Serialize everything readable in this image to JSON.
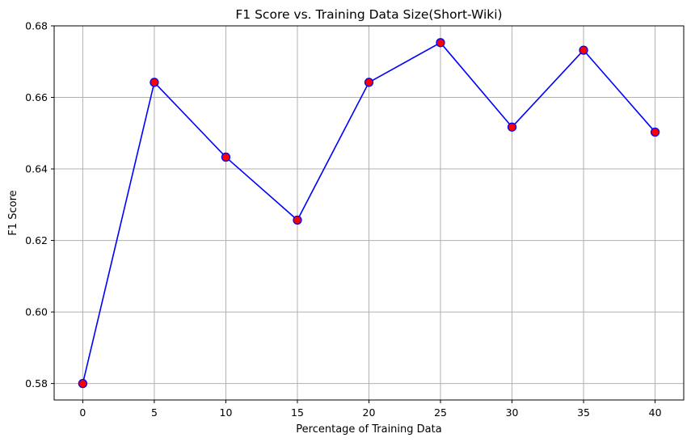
{
  "chart_data": {
    "type": "line",
    "title": "F1 Score vs. Training Data Size(Short-Wiki)",
    "xlabel": "Percentage of Training Data",
    "ylabel": "F1 Score",
    "x": [
      0,
      5,
      10,
      15,
      20,
      25,
      30,
      35,
      40
    ],
    "series": [
      {
        "values": [
          0.58,
          0.6642,
          0.6433,
          0.6257,
          0.6642,
          0.6753,
          0.6517,
          0.6732,
          0.6503
        ],
        "line_color": "#0000ff",
        "marker_face_color": "#ff0000",
        "marker_edge_color": "#0000ff",
        "marker": "circle"
      }
    ],
    "xlim": [
      -2,
      42
    ],
    "ylim": [
      0.5754,
      0.68
    ],
    "xticks": [
      0,
      5,
      10,
      15,
      20,
      25,
      30,
      35,
      40
    ],
    "xtick_labels": [
      "0",
      "5",
      "10",
      "15",
      "20",
      "25",
      "30",
      "35",
      "40"
    ],
    "yticks": [
      0.58,
      0.6,
      0.62,
      0.64,
      0.66,
      0.68
    ],
    "ytick_labels": [
      "0.58",
      "0.60",
      "0.62",
      "0.64",
      "0.66",
      "0.68"
    ],
    "grid": true,
    "legend": "none"
  }
}
